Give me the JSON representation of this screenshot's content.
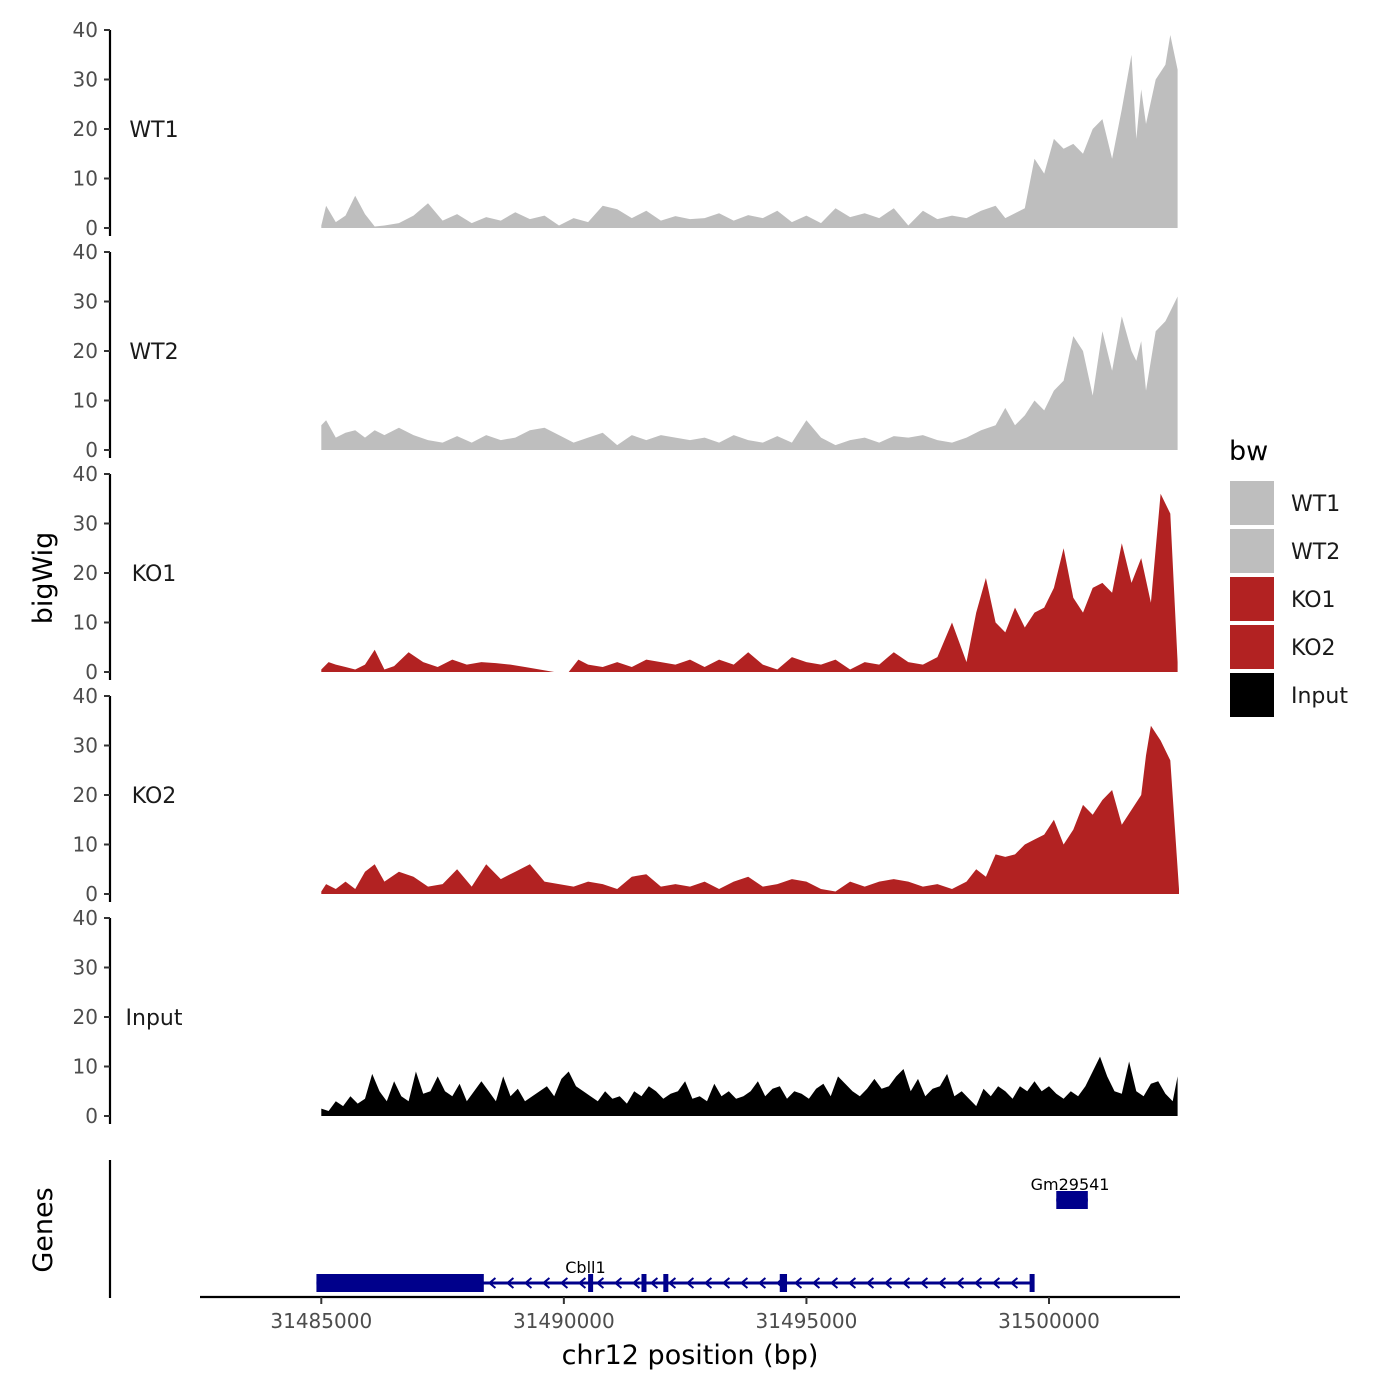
{
  "chart_data": {
    "type": "area",
    "title": "",
    "xlabel": "chr12 position (bp)",
    "ylabel": "bigWig",
    "xlim": [
      31482500,
      31502700
    ],
    "ylim": [
      0,
      40
    ],
    "x_ticks": [
      31485000,
      31490000,
      31495000,
      31500000
    ],
    "x_tick_labels": [
      "31485000",
      "31490000",
      "31495000",
      "31500000"
    ],
    "y_ticks": [
      0,
      10,
      20,
      30,
      40
    ],
    "y_tick_labels": [
      "0",
      "10",
      "20",
      "30",
      "40"
    ],
    "legend": {
      "title": "bw",
      "placement": "right",
      "entries": [
        {
          "label": "WT1",
          "color": "#bebebe"
        },
        {
          "label": "WT2",
          "color": "#bebebe"
        },
        {
          "label": "KO1",
          "color": "#b22222"
        },
        {
          "label": "KO2",
          "color": "#b22222"
        },
        {
          "label": "Input",
          "color": "#000000"
        }
      ]
    },
    "series": [
      {
        "name": "WT1",
        "color": "#bebebe",
        "x": [
          31485000,
          31485100,
          31485300,
          31485500,
          31485700,
          31485900,
          31486100,
          31486300,
          31486600,
          31486900,
          31487200,
          31487500,
          31487800,
          31488100,
          31488400,
          31488700,
          31489000,
          31489300,
          31489600,
          31489900,
          31490200,
          31490500,
          31490800,
          31491100,
          31491400,
          31491700,
          31492000,
          31492300,
          31492600,
          31492900,
          31493200,
          31493500,
          31493800,
          31494100,
          31494400,
          31494700,
          31495000,
          31495300,
          31495600,
          31495900,
          31496200,
          31496500,
          31496800,
          31497100,
          31497400,
          31497700,
          31498000,
          31498300,
          31498600,
          31498900,
          31499100,
          31499300,
          31499500,
          31499700,
          31499900,
          31500100,
          31500300,
          31500500,
          31500700,
          31500900,
          31501100,
          31501300,
          31501500,
          31501700,
          31501800,
          31501900,
          31502000,
          31502200,
          31502400,
          31502500,
          31502650
        ],
        "values": [
          0.5,
          4.5,
          1.2,
          2.5,
          6.5,
          2.8,
          0.3,
          0.5,
          1.0,
          2.5,
          5.0,
          1.5,
          2.8,
          1.0,
          2.2,
          1.5,
          3.2,
          1.8,
          2.5,
          0.5,
          2.0,
          1.2,
          4.5,
          3.8,
          2.0,
          3.5,
          1.5,
          2.4,
          1.8,
          2.0,
          3.0,
          1.5,
          2.6,
          2.0,
          3.5,
          1.2,
          2.5,
          1.0,
          4.0,
          2.2,
          3.0,
          2.0,
          4.0,
          0.5,
          3.5,
          1.8,
          2.5,
          2.0,
          3.5,
          4.5,
          2.0,
          3.0,
          4.0,
          14.0,
          11.0,
          18.0,
          16.0,
          17.0,
          15.0,
          20.0,
          22.0,
          14.0,
          24.0,
          35.0,
          18.0,
          28.0,
          21.0,
          30.0,
          33.0,
          39.0,
          32.0
        ]
      },
      {
        "name": "WT2",
        "color": "#bebebe",
        "x": [
          31485000,
          31485100,
          31485300,
          31485500,
          31485700,
          31485900,
          31486100,
          31486300,
          31486600,
          31486900,
          31487200,
          31487500,
          31487800,
          31488100,
          31488400,
          31488700,
          31489000,
          31489300,
          31489600,
          31489900,
          31490200,
          31490500,
          31490800,
          31491100,
          31491400,
          31491700,
          31492000,
          31492300,
          31492600,
          31492900,
          31493200,
          31493500,
          31493800,
          31494100,
          31494400,
          31494700,
          31495000,
          31495300,
          31495600,
          31495900,
          31496200,
          31496500,
          31496800,
          31497100,
          31497400,
          31497700,
          31498000,
          31498300,
          31498600,
          31498900,
          31499100,
          31499300,
          31499500,
          31499700,
          31499900,
          31500100,
          31500300,
          31500500,
          31500700,
          31500900,
          31501100,
          31501300,
          31501500,
          31501700,
          31501800,
          31501900,
          31502000,
          31502200,
          31502400,
          31502500,
          31502650
        ],
        "values": [
          5.0,
          6.0,
          2.5,
          3.5,
          4.0,
          2.5,
          4.0,
          3.0,
          4.5,
          3.0,
          2.0,
          1.5,
          2.8,
          1.5,
          3.0,
          2.0,
          2.5,
          4.0,
          4.5,
          3.0,
          1.5,
          2.5,
          3.5,
          1.0,
          3.0,
          2.0,
          3.0,
          2.5,
          2.0,
          2.5,
          1.5,
          3.0,
          2.0,
          1.5,
          2.8,
          1.5,
          6.0,
          2.5,
          1.0,
          2.0,
          2.5,
          1.5,
          2.8,
          2.5,
          3.0,
          2.0,
          1.5,
          2.5,
          4.0,
          5.0,
          8.5,
          5.0,
          7.0,
          10.0,
          8.0,
          12.0,
          14.0,
          23.0,
          20.0,
          11.0,
          24.0,
          16.0,
          27.0,
          20.0,
          18.0,
          22.0,
          12.0,
          24.0,
          26.0,
          28.0,
          31.0
        ]
      },
      {
        "name": "KO1",
        "color": "#b22222",
        "x": [
          31485000,
          31485150,
          31485300,
          31485500,
          31485700,
          31485900,
          31486100,
          31486300,
          31486500,
          31486800,
          31487100,
          31487400,
          31487700,
          31488000,
          31488300,
          31488600,
          31488900,
          31489200,
          31489500,
          31489800,
          31490000,
          31490100,
          31490300,
          31490500,
          31490800,
          31491100,
          31491400,
          31491700,
          31492000,
          31492300,
          31492600,
          31492900,
          31493200,
          31493500,
          31493800,
          31494100,
          31494400,
          31494700,
          31495000,
          31495300,
          31495600,
          31495900,
          31496200,
          31496500,
          31496800,
          31497100,
          31497400,
          31497700,
          31498000,
          31498300,
          31498500,
          31498700,
          31498900,
          31499100,
          31499300,
          31499500,
          31499700,
          31499900,
          31500100,
          31500300,
          31500500,
          31500700,
          31500900,
          31501100,
          31501300,
          31501500,
          31501700,
          31501900,
          31502100,
          31502300,
          31502500,
          31502650
        ],
        "values": [
          0.5,
          2.0,
          1.5,
          1.0,
          0.5,
          1.5,
          4.5,
          0.5,
          1.2,
          4.0,
          2.0,
          1.0,
          2.5,
          1.5,
          2.0,
          1.8,
          1.5,
          1.0,
          0.5,
          0.0,
          0.0,
          0.0,
          2.5,
          1.5,
          1.0,
          2.0,
          1.0,
          2.5,
          2.0,
          1.5,
          2.5,
          1.0,
          2.5,
          1.5,
          4.0,
          1.5,
          0.5,
          3.0,
          2.0,
          1.5,
          2.5,
          0.5,
          2.0,
          1.5,
          4.0,
          2.0,
          1.5,
          3.0,
          10.0,
          2.0,
          12.0,
          19.0,
          10.0,
          8.0,
          13.0,
          9.0,
          12.0,
          13.0,
          17.0,
          25.0,
          15.0,
          12.0,
          17.0,
          18.0,
          16.0,
          26.0,
          18.0,
          23.0,
          14.0,
          36.0,
          32.0,
          2.0
        ]
      },
      {
        "name": "KO2",
        "color": "#b22222",
        "x": [
          31485000,
          31485100,
          31485300,
          31485500,
          31485700,
          31485900,
          31486100,
          31486300,
          31486600,
          31486900,
          31487200,
          31487500,
          31487800,
          31488100,
          31488400,
          31488700,
          31489000,
          31489300,
          31489600,
          31489900,
          31490200,
          31490500,
          31490800,
          31491100,
          31491400,
          31491700,
          31492000,
          31492300,
          31492600,
          31492900,
          31493200,
          31493500,
          31493800,
          31494100,
          31494400,
          31494700,
          31495000,
          31495300,
          31495600,
          31495900,
          31496200,
          31496500,
          31496800,
          31497100,
          31497400,
          31497700,
          31498000,
          31498300,
          31498500,
          31498700,
          31498900,
          31499100,
          31499300,
          31499500,
          31499700,
          31499900,
          31500100,
          31500300,
          31500500,
          31500700,
          31500900,
          31501100,
          31501300,
          31501500,
          31501700,
          31501900,
          31502000,
          31502100,
          31502300,
          31502500,
          31502680
        ],
        "values": [
          0.5,
          2.0,
          1.0,
          2.5,
          1.0,
          4.5,
          6.0,
          2.5,
          4.5,
          3.5,
          1.5,
          2.0,
          5.0,
          1.5,
          6.0,
          3.0,
          4.5,
          6.0,
          2.5,
          2.0,
          1.5,
          2.5,
          2.0,
          1.0,
          3.5,
          4.0,
          1.5,
          2.0,
          1.5,
          2.5,
          1.0,
          2.5,
          3.5,
          1.5,
          2.0,
          3.0,
          2.5,
          1.0,
          0.5,
          2.5,
          1.5,
          2.5,
          3.0,
          2.5,
          1.5,
          2.0,
          1.0,
          2.5,
          5.0,
          3.5,
          8.0,
          7.5,
          8.0,
          10.0,
          11.0,
          12.0,
          15.0,
          10.0,
          13.0,
          18.0,
          16.0,
          19.0,
          21.0,
          14.0,
          17.0,
          20.0,
          28.0,
          34.0,
          31.0,
          27.0,
          1.0
        ]
      },
      {
        "name": "Input",
        "color": "#000000",
        "x": [
          31485000,
          31485150,
          31485300,
          31485450,
          31485600,
          31485750,
          31485900,
          31486050,
          31486200,
          31486350,
          31486500,
          31486650,
          31486800,
          31486950,
          31487100,
          31487250,
          31487400,
          31487550,
          31487700,
          31487850,
          31488000,
          31488150,
          31488300,
          31488450,
          31488600,
          31488750,
          31488900,
          31489050,
          31489200,
          31489350,
          31489500,
          31489650,
          31489800,
          31489950,
          31490100,
          31490250,
          31490400,
          31490550,
          31490700,
          31490850,
          31491000,
          31491150,
          31491300,
          31491450,
          31491600,
          31491750,
          31491900,
          31492050,
          31492200,
          31492350,
          31492500,
          31492650,
          31492800,
          31492950,
          31493100,
          31493250,
          31493400,
          31493550,
          31493700,
          31493850,
          31494000,
          31494150,
          31494300,
          31494450,
          31494600,
          31494750,
          31494900,
          31495050,
          31495200,
          31495350,
          31495500,
          31495650,
          31495800,
          31495950,
          31496100,
          31496250,
          31496400,
          31496550,
          31496700,
          31496850,
          31497000,
          31497150,
          31497300,
          31497450,
          31497600,
          31497750,
          31497900,
          31498050,
          31498200,
          31498350,
          31498500,
          31498650,
          31498800,
          31498950,
          31499100,
          31499250,
          31499400,
          31499550,
          31499700,
          31499850,
          31500000,
          31500150,
          31500300,
          31500450,
          31500600,
          31500750,
          31500900,
          31501050,
          31501200,
          31501350,
          31501500,
          31501650,
          31501800,
          31501950,
          31502100,
          31502250,
          31502400,
          31502550,
          31502650
        ],
        "values": [
          1.5,
          1.0,
          3.0,
          2.0,
          4.0,
          2.5,
          3.5,
          8.5,
          5.0,
          3.0,
          7.0,
          4.0,
          3.0,
          9.0,
          4.5,
          5.0,
          8.0,
          5.0,
          4.0,
          6.5,
          3.0,
          5.0,
          7.0,
          5.0,
          3.0,
          8.0,
          4.0,
          5.5,
          3.0,
          4.0,
          5.0,
          6.0,
          4.0,
          7.5,
          9.0,
          6.0,
          5.0,
          4.0,
          3.0,
          5.0,
          3.5,
          4.0,
          2.5,
          5.0,
          4.0,
          6.0,
          5.0,
          3.5,
          4.5,
          5.0,
          7.0,
          3.5,
          4.0,
          3.0,
          6.5,
          4.0,
          5.0,
          3.5,
          4.0,
          5.0,
          7.0,
          4.0,
          5.5,
          6.0,
          3.5,
          5.0,
          4.5,
          3.5,
          5.5,
          6.5,
          4.0,
          8.0,
          6.5,
          5.0,
          4.0,
          5.5,
          7.5,
          5.5,
          6.0,
          8.0,
          9.5,
          5.0,
          7.5,
          4.0,
          5.5,
          6.0,
          8.5,
          4.0,
          5.0,
          3.5,
          2.0,
          5.5,
          4.0,
          6.0,
          5.0,
          3.5,
          6.0,
          5.0,
          7.0,
          5.0,
          6.0,
          4.5,
          3.5,
          5.0,
          4.0,
          6.0,
          9.0,
          12.0,
          8.0,
          5.0,
          4.5,
          11.0,
          5.0,
          4.0,
          6.5,
          7.0,
          4.5,
          3.0,
          8.0
        ]
      }
    ],
    "genes_track": {
      "ylabel": "Genes",
      "genes": [
        {
          "name": "Gm29541",
          "start": 31500150,
          "end": 31500800,
          "strand": "-",
          "color": "#00008b",
          "exons": [
            [
              31500150,
              31500800
            ]
          ]
        },
        {
          "name": "Cbll1",
          "start": 31484900,
          "end": 31499700,
          "strand": "-",
          "color": "#00008b",
          "exons": [
            [
              31484900,
              31488350
            ],
            [
              31490500,
              31490600
            ],
            [
              31491600,
              31491700
            ],
            [
              31492050,
              31492150
            ],
            [
              31494450,
              31494600
            ],
            [
              31499600,
              31499700
            ]
          ]
        }
      ]
    }
  }
}
